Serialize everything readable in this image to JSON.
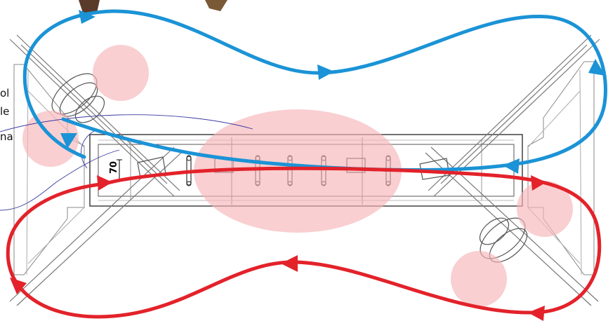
{
  "side_text": [
    "ol",
    "le",
    "na"
  ],
  "dimension_label": "70",
  "colors": {
    "blue_loop": "#1b93d6",
    "red_loop": "#e3222a",
    "highlight": "#f6b6b8",
    "drawing_line": "#8a8a8a",
    "wire": "#3a3aa0"
  },
  "icons": [
    "arrow-head-icon"
  ]
}
